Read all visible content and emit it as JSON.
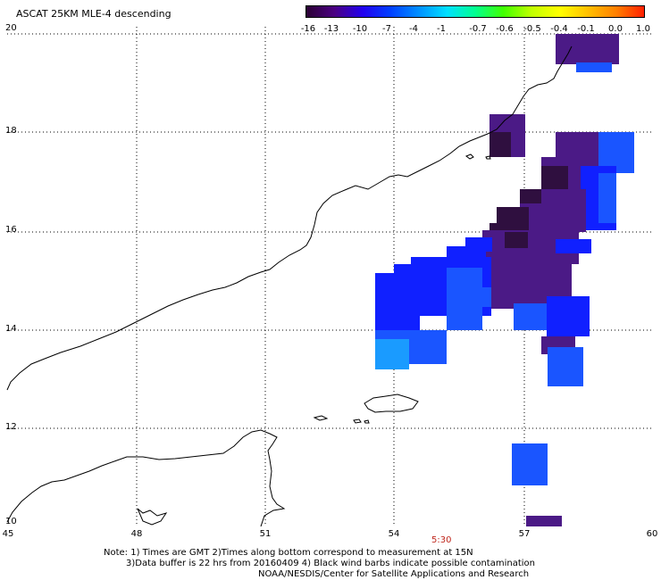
{
  "title": "ASCAT 25KM MLE-4 descending",
  "colorbar": {
    "labels": [
      "-16",
      "-13",
      "-10",
      "-7",
      "-4",
      "-1",
      "-0.7",
      "-0.6",
      "-0.5",
      "-0.4",
      "-0.1",
      "0.0",
      "1.0"
    ],
    "colors": [
      "#2a0033",
      "#4b0082",
      "#2200ee",
      "#0040ff",
      "#0090ff",
      "#00e0ff",
      "#00ff90",
      "#40ff00",
      "#c0ff00",
      "#ffff00",
      "#ffc000",
      "#ff8000",
      "#ff2000"
    ]
  },
  "lat_labels": [
    "20",
    "18",
    "16",
    "14",
    "12",
    "10"
  ],
  "lon_labels": [
    "45",
    "48",
    "51",
    "54",
    "57",
    "60"
  ],
  "time_label": "5:30",
  "notes": {
    "line1": "Note: 1) Times are GMT 2)Times along bottom correspond to measurement at 15N",
    "line2": "3)Data buffer is 22 hrs from 20160409 4) Black wind barbs indicate possible contamination",
    "line3": "NOAA/NESDIS/Center for Satellite Applications and Research"
  },
  "colors": {
    "dark_purple": "#2f0f3f",
    "purple": "#4b1a86",
    "blue": "#1020ff",
    "medium_blue": "#1a55ff",
    "light_blue": "#1a9bff"
  }
}
